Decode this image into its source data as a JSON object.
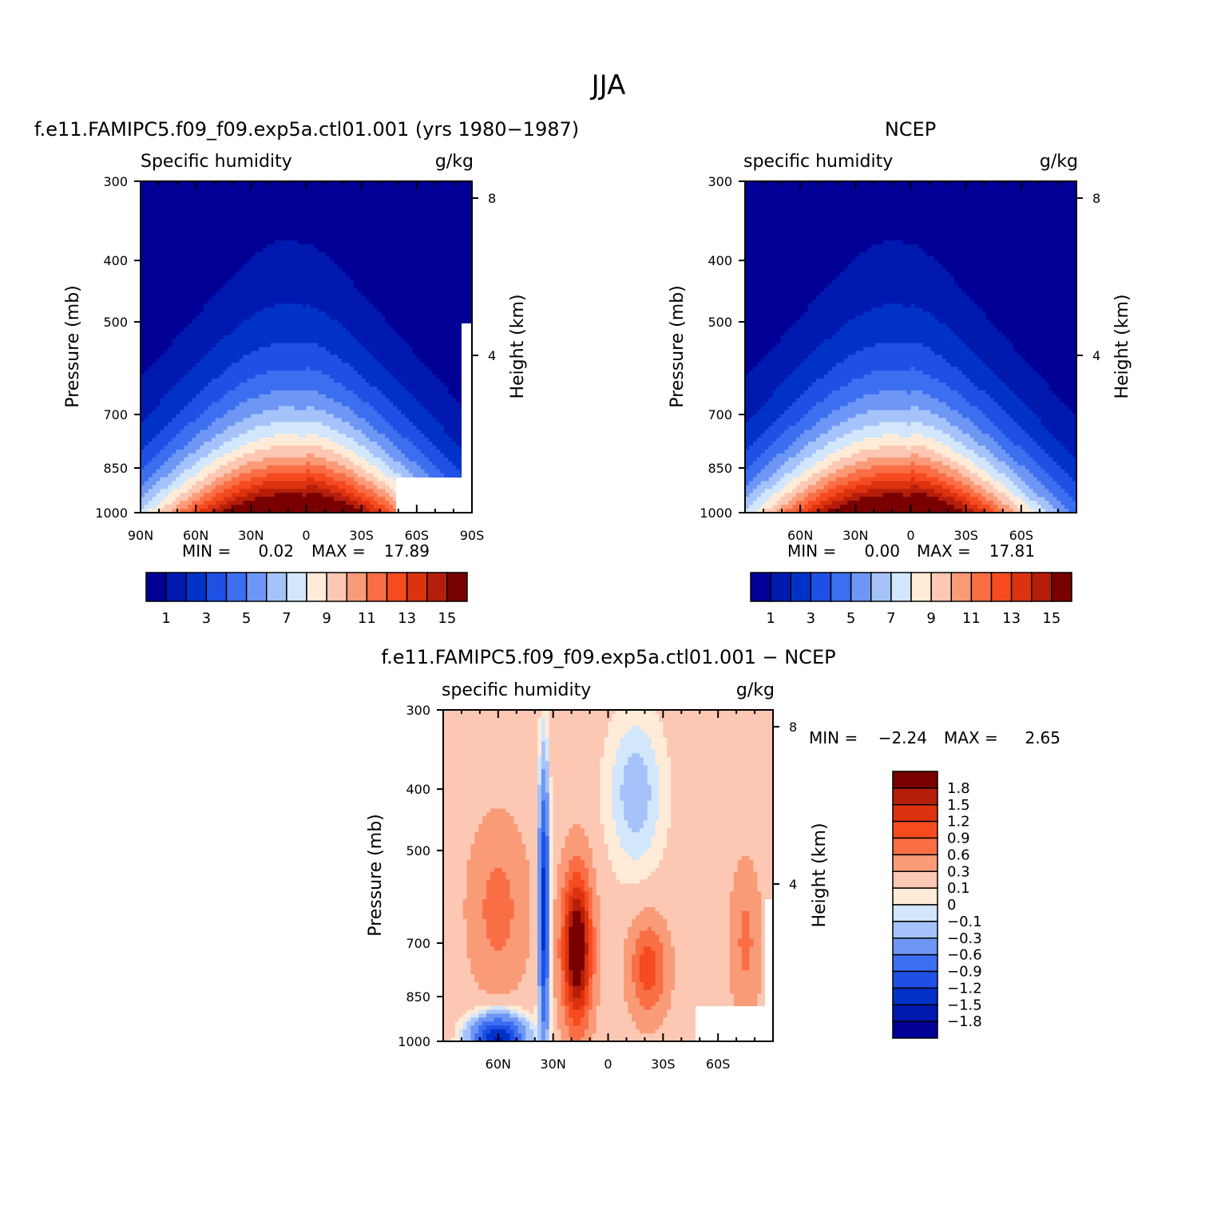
{
  "figure": {
    "title": "JJA",
    "colors": {
      "abs_fills": [
        "#000096",
        "#0019ae",
        "#0032c8",
        "#1e50e6",
        "#3c6ef0",
        "#6e96f5",
        "#a5c3fa",
        "#d2e6fc",
        "#ffebd7",
        "#fcc8b4",
        "#fa9b78",
        "#fa6e46",
        "#f54b1e",
        "#dc320f",
        "#b41e0a",
        "#780000"
      ],
      "diff_fills": [
        "#000096",
        "#0019ae",
        "#0032c8",
        "#1e50e6",
        "#3c6ef0",
        "#6e96f5",
        "#a5c3fa",
        "#d2e6fc",
        "#ffebd7",
        "#fcc8b4",
        "#fa9b78",
        "#fa6e46",
        "#f54b1e",
        "#dc320f",
        "#b41e0a",
        "#780000"
      ]
    }
  },
  "chart_data": [
    {
      "type": "contour",
      "case_title": "f.e11.FAMIPC5.f09_f09.exp5a.ctl01.001 (yrs 1980-1987)",
      "left_string": "Specific humidity",
      "right_string": "g/kg",
      "ylabel": "Pressure (mb)",
      "ylabel_right": "Height (km)",
      "pressure_ticks": [
        "300",
        "400",
        "500",
        "700",
        "850",
        "1000"
      ],
      "height_ticks": [
        "8",
        "4"
      ],
      "lat_ticks": [
        "90N",
        "60N",
        "30N",
        "0",
        "30S",
        "60S",
        "90S"
      ],
      "min_label": "MIN =",
      "min_value": "0.02",
      "max_label": "MAX =",
      "max_value": "17.89",
      "levels": [
        1,
        2,
        3,
        4,
        5,
        6,
        7,
        8,
        9,
        10,
        11,
        12,
        13,
        14,
        15
      ],
      "colorbar_labels": [
        "1",
        "3",
        "5",
        "7",
        "9",
        "11",
        "13",
        "15"
      ],
      "peak_value": 17.89,
      "peak_lat": 10,
      "peak_pressure": 1000
    },
    {
      "type": "contour",
      "case_title": "NCEP",
      "left_string": "specific humidity",
      "right_string": "g/kg",
      "ylabel": "Pressure (mb)",
      "ylabel_right": "Height (km)",
      "pressure_ticks": [
        "300",
        "400",
        "500",
        "700",
        "850",
        "1000"
      ],
      "height_ticks": [
        "8",
        "4"
      ],
      "lat_ticks": [
        "60N",
        "30N",
        "0",
        "30S",
        "60S"
      ],
      "min_label": "MIN =",
      "min_value": "0.00",
      "max_label": "MAX =",
      "max_value": "17.81",
      "levels": [
        1,
        2,
        3,
        4,
        5,
        6,
        7,
        8,
        9,
        10,
        11,
        12,
        13,
        14,
        15
      ],
      "colorbar_labels": [
        "1",
        "3",
        "5",
        "7",
        "9",
        "11",
        "13",
        "15"
      ],
      "peak_value": 17.81,
      "peak_lat": 10,
      "peak_pressure": 1000
    },
    {
      "type": "contour",
      "case_title": "f.e11.FAMIPC5.f09_f09.exp5a.ctl01.001 - NCEP",
      "left_string": "specific humidity",
      "right_string": "g/kg",
      "ylabel": "Pressure (mb)",
      "ylabel_right": "Height (km)",
      "pressure_ticks": [
        "300",
        "400",
        "500",
        "700",
        "850",
        "1000"
      ],
      "height_ticks": [
        "8",
        "4"
      ],
      "lat_ticks": [
        "60N",
        "30N",
        "0",
        "30S",
        "60S"
      ],
      "min_label": "MIN =",
      "min_value": "-2.24",
      "max_label": "MAX =",
      "max_value": "2.65",
      "levels": [
        -1.8,
        -1.5,
        -1.2,
        -0.9,
        -0.6,
        -0.3,
        -0.1,
        0,
        0.1,
        0.3,
        0.6,
        0.9,
        1.2,
        1.5,
        1.8
      ],
      "colorbar_labels": [
        "1.8",
        "1.5",
        "1.2",
        "0.9",
        "0.6",
        "0.3",
        "0.1",
        "0",
        "-0.1",
        "-0.3",
        "-0.6",
        "-0.9",
        "-1.2",
        "-1.5",
        "-1.8"
      ]
    }
  ]
}
